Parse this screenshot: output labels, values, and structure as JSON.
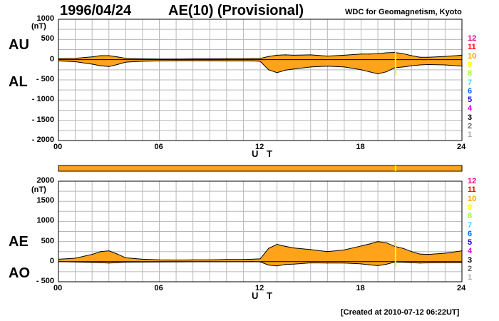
{
  "header": {
    "date": "1996/04/24",
    "title": "AE(10) (Provisional)",
    "source": "WDC for Geomagnetism, Kyoto"
  },
  "footer": {
    "created": "[Created at 2010-07-12 06:22UT]"
  },
  "colors": {
    "fill": "#ffa31a",
    "grid": "#b8b8b8",
    "marker": "#ffff00",
    "bar": "#ffa31a"
  },
  "station_count_colors": [
    "#e8008c",
    "#ff0000",
    "#ffa000",
    "#ffff00",
    "#99ff33",
    "#33ddff",
    "#0066ff",
    "#1a00cc",
    "#cc00cc",
    "#000000",
    "#666666",
    "#aaaaaa"
  ],
  "station_counts": [
    "12",
    "11",
    "10",
    "9",
    "8",
    "7",
    "6",
    "5",
    "4",
    "3",
    "2",
    "1"
  ],
  "chart_data": [
    {
      "type": "area",
      "side_labels": [
        "AU",
        "AL"
      ],
      "units": "(nT)",
      "ylim": [
        -2000,
        1000
      ],
      "yticks": [
        1000,
        500,
        0,
        -500,
        -1000,
        -1500,
        -2000
      ],
      "ytick_labels": [
        "1000",
        "500",
        "0",
        "- 500",
        "- 1000",
        "- 1500",
        "- 2000"
      ],
      "xlim": [
        0,
        24
      ],
      "xticks": [
        0,
        6,
        12,
        18,
        24
      ],
      "xtick_labels": [
        "00",
        "06",
        "12",
        "18",
        "24"
      ],
      "xlabel": "U T",
      "grid": true,
      "marker_ut": 20.05,
      "x": [
        0,
        1,
        2,
        2.5,
        3,
        3.5,
        4,
        5,
        6,
        7,
        8,
        9,
        10,
        11,
        11.5,
        12,
        12.5,
        13,
        13.5,
        14,
        15,
        16,
        17,
        18,
        18.5,
        19,
        19.5,
        20,
        20.5,
        21,
        21.5,
        22,
        23,
        24
      ],
      "series": [
        {
          "name": "AU",
          "values": [
            30,
            35,
            70,
            100,
            100,
            70,
            35,
            20,
            15,
            15,
            20,
            20,
            25,
            25,
            30,
            30,
            80,
            110,
            120,
            110,
            120,
            90,
            110,
            140,
            140,
            150,
            170,
            180,
            150,
            100,
            60,
            60,
            80,
            110
          ]
        },
        {
          "name": "AL",
          "values": [
            -30,
            -50,
            -110,
            -150,
            -170,
            -120,
            -60,
            -40,
            -30,
            -25,
            -25,
            -25,
            -30,
            -30,
            -30,
            -40,
            -250,
            -320,
            -260,
            -230,
            -180,
            -160,
            -180,
            -250,
            -300,
            -350,
            -300,
            -200,
            -180,
            -150,
            -130,
            -120,
            -130,
            -160
          ]
        }
      ]
    },
    {
      "type": "area",
      "side_labels": [
        "AE",
        "AO"
      ],
      "units": "(nT)",
      "ylim": [
        -500,
        2000
      ],
      "yticks": [
        2000,
        1500,
        1000,
        500,
        0,
        -500
      ],
      "ytick_labels": [
        "2000",
        "1500",
        "1000",
        "500",
        "0",
        "- 500"
      ],
      "xlim": [
        0,
        24
      ],
      "xticks": [
        0,
        6,
        12,
        18,
        24
      ],
      "xtick_labels": [
        "00",
        "06",
        "12",
        "18",
        "24"
      ],
      "xlabel": "U T",
      "grid": true,
      "marker_ut": 20.05,
      "x": [
        0,
        1,
        2,
        2.5,
        3,
        3.5,
        4,
        5,
        6,
        7,
        8,
        9,
        10,
        11,
        11.5,
        12,
        12.5,
        13,
        13.5,
        14,
        15,
        16,
        17,
        18,
        18.5,
        19,
        19.5,
        20,
        20.5,
        21,
        21.5,
        22,
        23,
        24
      ],
      "series": [
        {
          "name": "AE",
          "values": [
            60,
            85,
            180,
            250,
            270,
            190,
            95,
            60,
            45,
            40,
            45,
            45,
            55,
            55,
            60,
            70,
            330,
            430,
            380,
            340,
            300,
            250,
            290,
            390,
            440,
            500,
            470,
            380,
            330,
            250,
            190,
            180,
            210,
            270
          ]
        },
        {
          "name": "AO",
          "values": [
            0,
            -8,
            -20,
            -25,
            -35,
            -25,
            -12,
            -10,
            -8,
            -5,
            -3,
            -3,
            -3,
            -3,
            0,
            -5,
            -85,
            -105,
            -70,
            -60,
            -30,
            -35,
            -35,
            -55,
            -80,
            -100,
            -65,
            -10,
            -15,
            -25,
            -35,
            -30,
            -25,
            -25
          ]
        }
      ]
    }
  ]
}
